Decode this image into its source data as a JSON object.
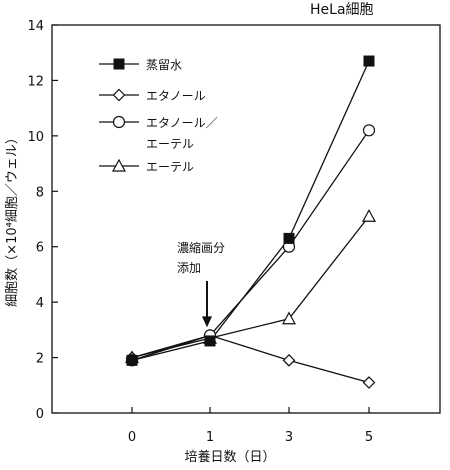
{
  "chart_data": {
    "type": "line",
    "title": "HeLa細胞",
    "xlabel": "培養日数（日）",
    "ylabel": "細胞数（×10⁴細胞／ウェル）",
    "x": [
      0,
      1,
      3,
      5
    ],
    "xticks": [
      "0",
      "1",
      "3",
      "5"
    ],
    "ylim": [
      0,
      14
    ],
    "yticks": [
      0,
      2,
      4,
      6,
      8,
      10,
      12,
      14
    ],
    "grid": false,
    "legend_position": "top-left",
    "series": [
      {
        "name": "蒸留水",
        "marker": "filled-square",
        "values": [
          1.9,
          2.6,
          6.3,
          12.7
        ]
      },
      {
        "name": "エタノール",
        "marker": "open-diamond",
        "values": [
          2.0,
          2.8,
          1.9,
          1.1
        ]
      },
      {
        "name_lines": [
          "エタノール／",
          "エーテル"
        ],
        "marker": "open-circle",
        "values": [
          1.9,
          2.8,
          6.0,
          10.2
        ]
      },
      {
        "name": "エーテル",
        "marker": "open-triangle",
        "values": [
          2.0,
          2.7,
          3.4,
          7.1
        ]
      }
    ],
    "annotation": {
      "lines": [
        "濃縮画分",
        "添加"
      ],
      "x": 1,
      "arrow_to_y": 2.8
    }
  }
}
